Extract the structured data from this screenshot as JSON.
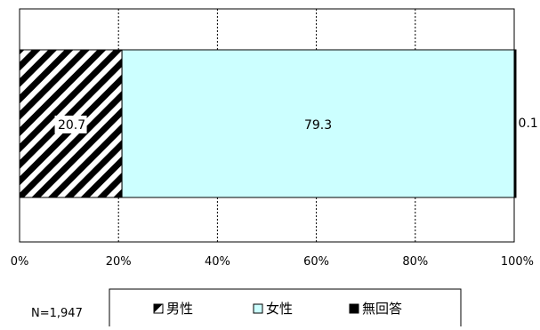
{
  "chart_data": {
    "type": "bar",
    "orientation": "horizontal-stacked-100",
    "title": "",
    "xlabel": "",
    "ylabel": "",
    "xlim": [
      0,
      100
    ],
    "x_ticks": [
      "0%",
      "20%",
      "40%",
      "60%",
      "80%",
      "100%"
    ],
    "grid": "vertical-dashed",
    "series": [
      {
        "name": "男性",
        "value": 20.7,
        "label": "20.7",
        "fill": "hatch",
        "color": "#000000",
        "legend_marker": "◘"
      },
      {
        "name": "女性",
        "value": 79.3,
        "label": "79.3",
        "fill": "solid",
        "color": "#CCFFFF",
        "legend_marker": "□"
      },
      {
        "name": "無回答",
        "value": 0.1,
        "label": "0.1",
        "fill": "solid",
        "color": "#000000",
        "legend_marker": "■"
      }
    ],
    "legend_placement": "bottom"
  },
  "n_label": "N=1,947"
}
